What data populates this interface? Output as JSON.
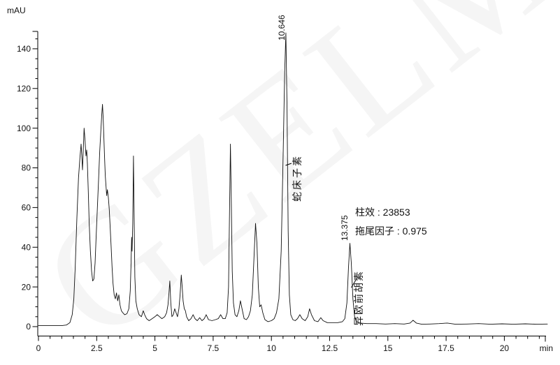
{
  "watermark": {
    "text": "GZELM"
  },
  "stats": {
    "lines": [
      {
        "label": "柱效",
        "value": "23853",
        "text": "柱效 : 23853"
      },
      {
        "label": "拖尾因子",
        "value": "0.975",
        "text": "拖尾因子 : 0.975"
      }
    ]
  },
  "chart_data": {
    "type": "line",
    "title": "",
    "xlabel": "min",
    "ylabel": "mAU",
    "xlim": [
      0,
      21.9
    ],
    "ylim": [
      0,
      150
    ],
    "grid": false,
    "x_axis": {
      "unit": "min",
      "minor_step": 0.5,
      "minor_max": 21.5,
      "ticks": [
        {
          "v": 0,
          "label": "0"
        },
        {
          "v": 2.5,
          "label": "2.5"
        },
        {
          "v": 5,
          "label": "5"
        },
        {
          "v": 7.5,
          "label": "7.5"
        },
        {
          "v": 10,
          "label": "10"
        },
        {
          "v": 12.5,
          "label": "12.5"
        },
        {
          "v": 15,
          "label": "15"
        },
        {
          "v": 17.5,
          "label": "17.5"
        },
        {
          "v": 20,
          "label": "20"
        }
      ]
    },
    "y_axis": {
      "unit": "mAU",
      "minor_step": 5,
      "minor_max": 145,
      "ticks": [
        {
          "v": 0,
          "label": "0"
        },
        {
          "v": 20,
          "label": "20"
        },
        {
          "v": 40,
          "label": "40"
        },
        {
          "v": 60,
          "label": "60"
        },
        {
          "v": 80,
          "label": "80"
        },
        {
          "v": 100,
          "label": "100"
        },
        {
          "v": 120,
          "label": "120"
        },
        {
          "v": 140,
          "label": "140"
        }
      ]
    },
    "peak_labels": [
      {
        "text": "10.646",
        "rt": 10.646
      },
      {
        "text": "13.375",
        "rt": 13.375
      }
    ],
    "annotations": [
      {
        "text": "蛇床子素",
        "rt": 10.646
      },
      {
        "text": "异欧前胡素",
        "rt": 13.375
      }
    ],
    "peaks_annotated": [
      {
        "rt": 10.646,
        "name": "蛇床子素",
        "height_mAU": 148
      },
      {
        "rt": 13.375,
        "name": "异欧前胡素",
        "height_mAU": 42
      }
    ],
    "trace": [
      [
        0,
        0.5
      ],
      [
        0.5,
        0.5
      ],
      [
        1.0,
        0.5
      ],
      [
        1.2,
        0.8
      ],
      [
        1.35,
        2
      ],
      [
        1.45,
        6
      ],
      [
        1.52,
        14
      ],
      [
        1.58,
        30
      ],
      [
        1.65,
        55
      ],
      [
        1.72,
        75
      ],
      [
        1.78,
        85
      ],
      [
        1.83,
        92
      ],
      [
        1.86,
        86
      ],
      [
        1.89,
        79
      ],
      [
        1.92,
        88
      ],
      [
        1.96,
        100
      ],
      [
        2.0,
        94
      ],
      [
        2.04,
        86
      ],
      [
        2.07,
        89
      ],
      [
        2.1,
        82
      ],
      [
        2.14,
        68
      ],
      [
        2.18,
        52
      ],
      [
        2.23,
        38
      ],
      [
        2.28,
        28
      ],
      [
        2.33,
        23
      ],
      [
        2.38,
        24
      ],
      [
        2.43,
        32
      ],
      [
        2.48,
        46
      ],
      [
        2.53,
        60
      ],
      [
        2.58,
        74
      ],
      [
        2.63,
        88
      ],
      [
        2.68,
        99
      ],
      [
        2.72,
        107
      ],
      [
        2.75,
        112
      ],
      [
        2.78,
        105
      ],
      [
        2.81,
        95
      ],
      [
        2.84,
        85
      ],
      [
        2.87,
        76
      ],
      [
        2.9,
        71
      ],
      [
        2.93,
        66
      ],
      [
        2.96,
        69
      ],
      [
        3.0,
        65
      ],
      [
        3.04,
        59
      ],
      [
        3.08,
        50
      ],
      [
        3.12,
        40
      ],
      [
        3.16,
        30
      ],
      [
        3.2,
        22
      ],
      [
        3.25,
        16
      ],
      [
        3.3,
        14
      ],
      [
        3.35,
        17
      ],
      [
        3.4,
        13
      ],
      [
        3.45,
        16
      ],
      [
        3.5,
        11
      ],
      [
        3.56,
        8
      ],
      [
        3.62,
        7
      ],
      [
        3.7,
        6
      ],
      [
        3.8,
        6.5
      ],
      [
        3.88,
        9
      ],
      [
        3.94,
        18
      ],
      [
        3.97,
        30
      ],
      [
        4.0,
        45
      ],
      [
        4.02,
        38
      ],
      [
        4.05,
        52
      ],
      [
        4.08,
        86
      ],
      [
        4.11,
        55
      ],
      [
        4.14,
        25
      ],
      [
        4.18,
        13
      ],
      [
        4.24,
        9
      ],
      [
        4.32,
        6
      ],
      [
        4.42,
        5
      ],
      [
        4.5,
        8
      ],
      [
        4.56,
        6
      ],
      [
        4.64,
        4
      ],
      [
        4.75,
        3
      ],
      [
        4.88,
        4
      ],
      [
        5.0,
        5
      ],
      [
        5.1,
        6
      ],
      [
        5.2,
        5
      ],
      [
        5.3,
        4
      ],
      [
        5.42,
        5
      ],
      [
        5.5,
        7
      ],
      [
        5.56,
        11
      ],
      [
        5.61,
        18
      ],
      [
        5.64,
        23
      ],
      [
        5.68,
        12
      ],
      [
        5.73,
        5
      ],
      [
        5.79,
        6
      ],
      [
        5.85,
        9
      ],
      [
        5.91,
        7
      ],
      [
        5.97,
        5
      ],
      [
        6.03,
        9
      ],
      [
        6.08,
        16
      ],
      [
        6.13,
        26
      ],
      [
        6.17,
        20
      ],
      [
        6.21,
        13
      ],
      [
        6.26,
        9
      ],
      [
        6.31,
        8
      ],
      [
        6.36,
        5
      ],
      [
        6.45,
        3
      ],
      [
        6.55,
        4
      ],
      [
        6.64,
        6
      ],
      [
        6.72,
        4
      ],
      [
        6.82,
        3
      ],
      [
        6.92,
        4.5
      ],
      [
        7.02,
        3
      ],
      [
        7.12,
        4
      ],
      [
        7.2,
        6
      ],
      [
        7.3,
        3.5
      ],
      [
        7.45,
        3
      ],
      [
        7.6,
        3.5
      ],
      [
        7.72,
        4
      ],
      [
        7.82,
        6
      ],
      [
        7.92,
        4
      ],
      [
        8.02,
        4
      ],
      [
        8.1,
        7
      ],
      [
        8.16,
        20
      ],
      [
        8.2,
        55
      ],
      [
        8.24,
        92
      ],
      [
        8.28,
        62
      ],
      [
        8.32,
        28
      ],
      [
        8.37,
        12
      ],
      [
        8.44,
        6
      ],
      [
        8.52,
        5
      ],
      [
        8.6,
        8
      ],
      [
        8.67,
        13
      ],
      [
        8.74,
        9
      ],
      [
        8.83,
        4
      ],
      [
        8.93,
        3.5
      ],
      [
        9.02,
        5
      ],
      [
        9.1,
        8
      ],
      [
        9.18,
        16
      ],
      [
        9.25,
        34
      ],
      [
        9.32,
        52
      ],
      [
        9.38,
        42
      ],
      [
        9.44,
        20
      ],
      [
        9.5,
        10
      ],
      [
        9.56,
        11
      ],
      [
        9.63,
        7
      ],
      [
        9.72,
        3.5
      ],
      [
        9.85,
        2.5
      ],
      [
        10.0,
        3
      ],
      [
        10.12,
        4
      ],
      [
        10.22,
        7
      ],
      [
        10.32,
        14
      ],
      [
        10.42,
        38
      ],
      [
        10.5,
        85
      ],
      [
        10.57,
        128
      ],
      [
        10.62,
        148
      ],
      [
        10.67,
        112
      ],
      [
        10.72,
        48
      ],
      [
        10.77,
        16
      ],
      [
        10.83,
        6
      ],
      [
        10.92,
        3.5
      ],
      [
        11.02,
        3
      ],
      [
        11.12,
        4
      ],
      [
        11.22,
        6
      ],
      [
        11.32,
        4
      ],
      [
        11.45,
        3
      ],
      [
        11.56,
        5
      ],
      [
        11.64,
        9
      ],
      [
        11.72,
        6
      ],
      [
        11.85,
        3
      ],
      [
        12.0,
        2.5
      ],
      [
        12.12,
        4.5
      ],
      [
        12.22,
        3
      ],
      [
        12.4,
        2
      ],
      [
        12.6,
        2
      ],
      [
        12.85,
        2
      ],
      [
        13.05,
        2.5
      ],
      [
        13.15,
        4
      ],
      [
        13.24,
        12
      ],
      [
        13.31,
        30
      ],
      [
        13.37,
        42
      ],
      [
        13.43,
        32
      ],
      [
        13.5,
        14
      ],
      [
        13.57,
        5
      ],
      [
        13.65,
        2.5
      ],
      [
        13.8,
        1.8
      ],
      [
        14.1,
        1.5
      ],
      [
        14.5,
        1.5
      ],
      [
        14.9,
        1.3
      ],
      [
        15.3,
        1.5
      ],
      [
        15.7,
        1.3
      ],
      [
        15.95,
        1.8
      ],
      [
        16.08,
        3.2
      ],
      [
        16.22,
        1.8
      ],
      [
        16.45,
        1.2
      ],
      [
        16.8,
        1.3
      ],
      [
        17.2,
        1.5
      ],
      [
        17.55,
        1.8
      ],
      [
        17.9,
        1.2
      ],
      [
        18.4,
        1.3
      ],
      [
        18.9,
        1.5
      ],
      [
        19.4,
        1.2
      ],
      [
        19.9,
        1.4
      ],
      [
        20.4,
        1.2
      ],
      [
        20.9,
        1.4
      ],
      [
        21.4,
        1.2
      ],
      [
        21.85,
        1.3
      ]
    ]
  }
}
